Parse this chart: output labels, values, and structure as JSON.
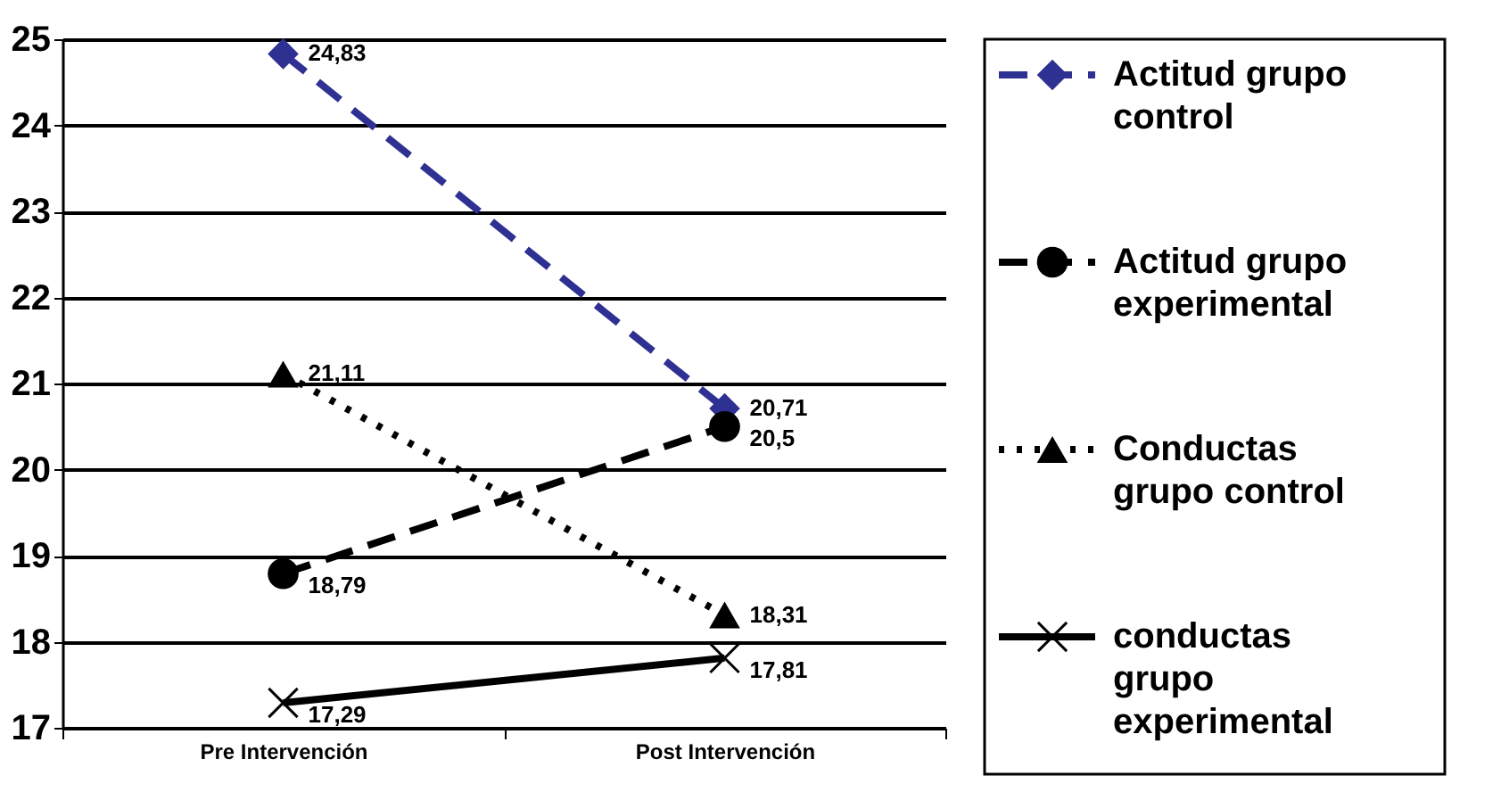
{
  "chart_data": {
    "type": "line",
    "categories": [
      "Pre Intervención",
      "Post Intervención"
    ],
    "series": [
      {
        "name": "Actitud grupo control",
        "color": "#2e3192",
        "marker": "diamond",
        "line_style": "dashed",
        "values": [
          24.83,
          20.71
        ],
        "value_labels": [
          "24,83",
          "20,71"
        ]
      },
      {
        "name": "Actitud grupo experimental",
        "color": "#000000",
        "marker": "circle",
        "line_style": "dashed",
        "values": [
          18.79,
          20.5
        ],
        "value_labels": [
          "18,79",
          "20,5"
        ]
      },
      {
        "name": "Conductas grupo control",
        "color": "#000000",
        "marker": "triangle",
        "line_style": "dotted",
        "values": [
          21.11,
          18.31
        ],
        "value_labels": [
          "21,11",
          "18,31"
        ]
      },
      {
        "name": "conductas grupo experimental",
        "color": "#000000",
        "marker": "cross",
        "line_style": "solid",
        "values": [
          17.29,
          17.81
        ],
        "value_labels": [
          "17,29",
          "17,81"
        ]
      }
    ],
    "ylim": [
      17,
      25
    ],
    "yticks": [
      17,
      18,
      19,
      20,
      21,
      22,
      23,
      24,
      25
    ],
    "grid": "y",
    "legend": "right"
  }
}
